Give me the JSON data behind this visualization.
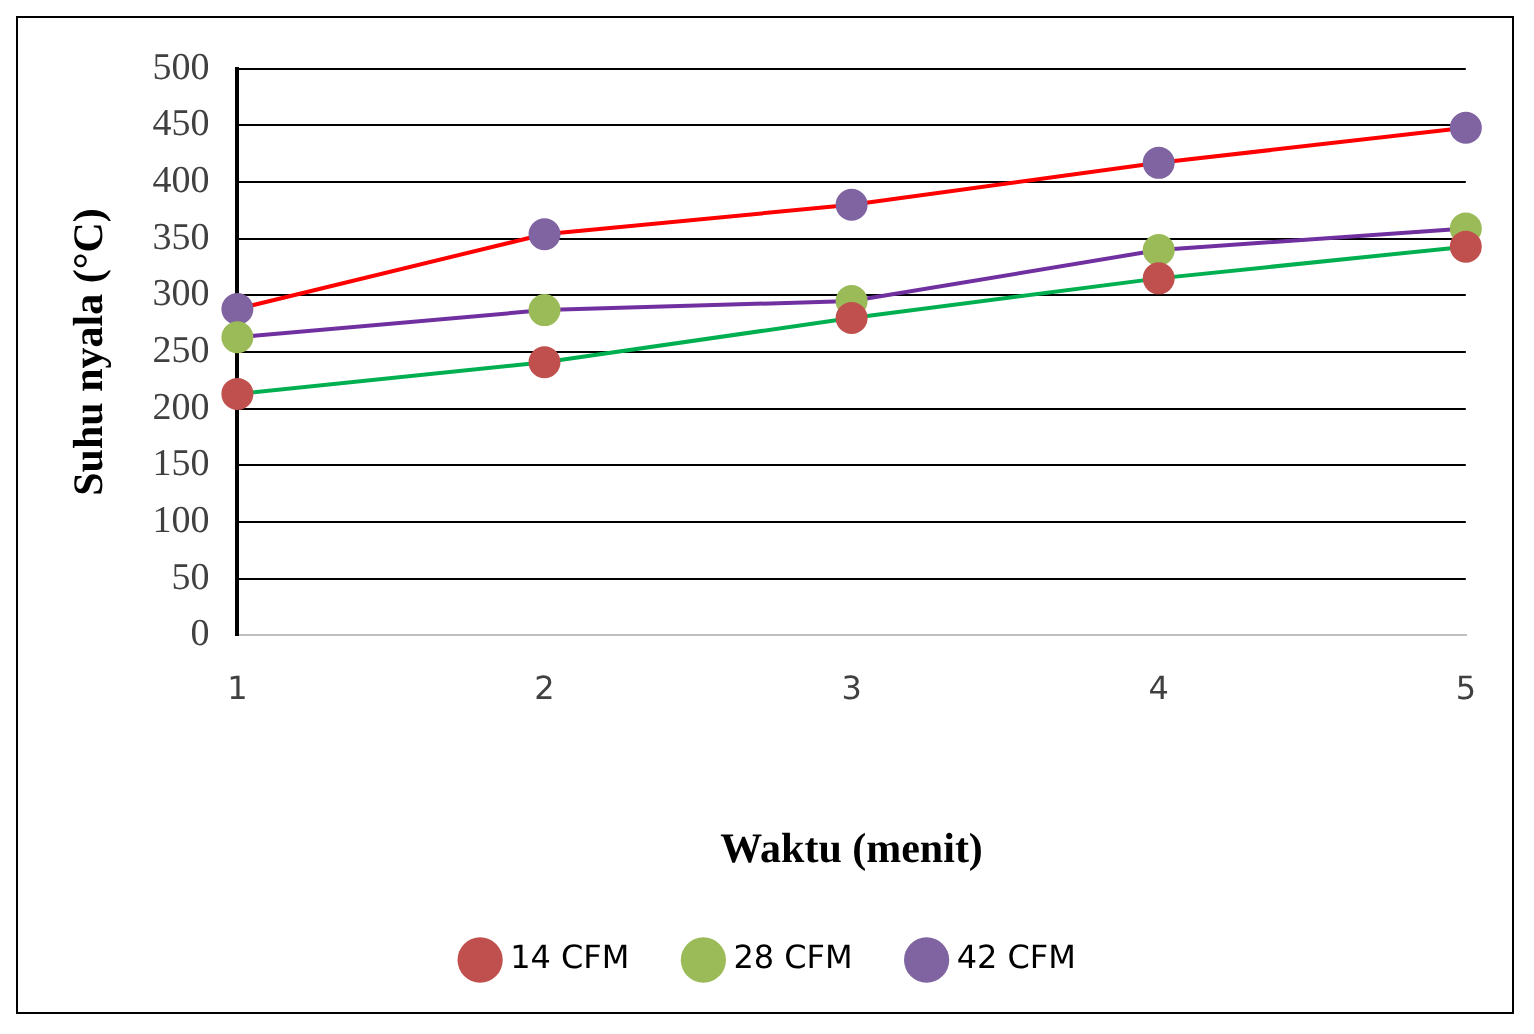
{
  "chart_data": {
    "type": "line",
    "xlabel": "Waktu (menit)",
    "ylabel": "Suhu nyala (°C)",
    "categories": [
      "1",
      "2",
      "3",
      "4",
      "5"
    ],
    "series": [
      {
        "name": "14 CFM",
        "color": "#00b050",
        "colors": [
          "#c0504d",
          "#c0504d",
          "#c0504d",
          "#c0504d",
          "#c0504d"
        ],
        "values": [
          213,
          241,
          280,
          315,
          343
        ]
      },
      {
        "name": "28 CFM",
        "color": "#7030a0",
        "colors": [
          "#9bbb59",
          "#9bbb59",
          "#9bbb59",
          "#9bbb59",
          "#9bbb59"
        ],
        "values": [
          263,
          287,
          295,
          340,
          359
        ]
      },
      {
        "name": "42 CFM",
        "color": "#ff0000",
        "colors": [
          "#8064a2",
          "#8064a2",
          "#8064a2",
          "#8064a2",
          "#8064a2"
        ],
        "values": [
          288,
          354,
          380,
          417,
          448
        ]
      }
    ],
    "ylim": [
      0,
      500
    ],
    "yticks": [
      0,
      50,
      100,
      150,
      200,
      250,
      300,
      350,
      400,
      450,
      500
    ],
    "grid": "y",
    "legend": "bottom",
    "marker": "circle",
    "line_style": "solid"
  }
}
